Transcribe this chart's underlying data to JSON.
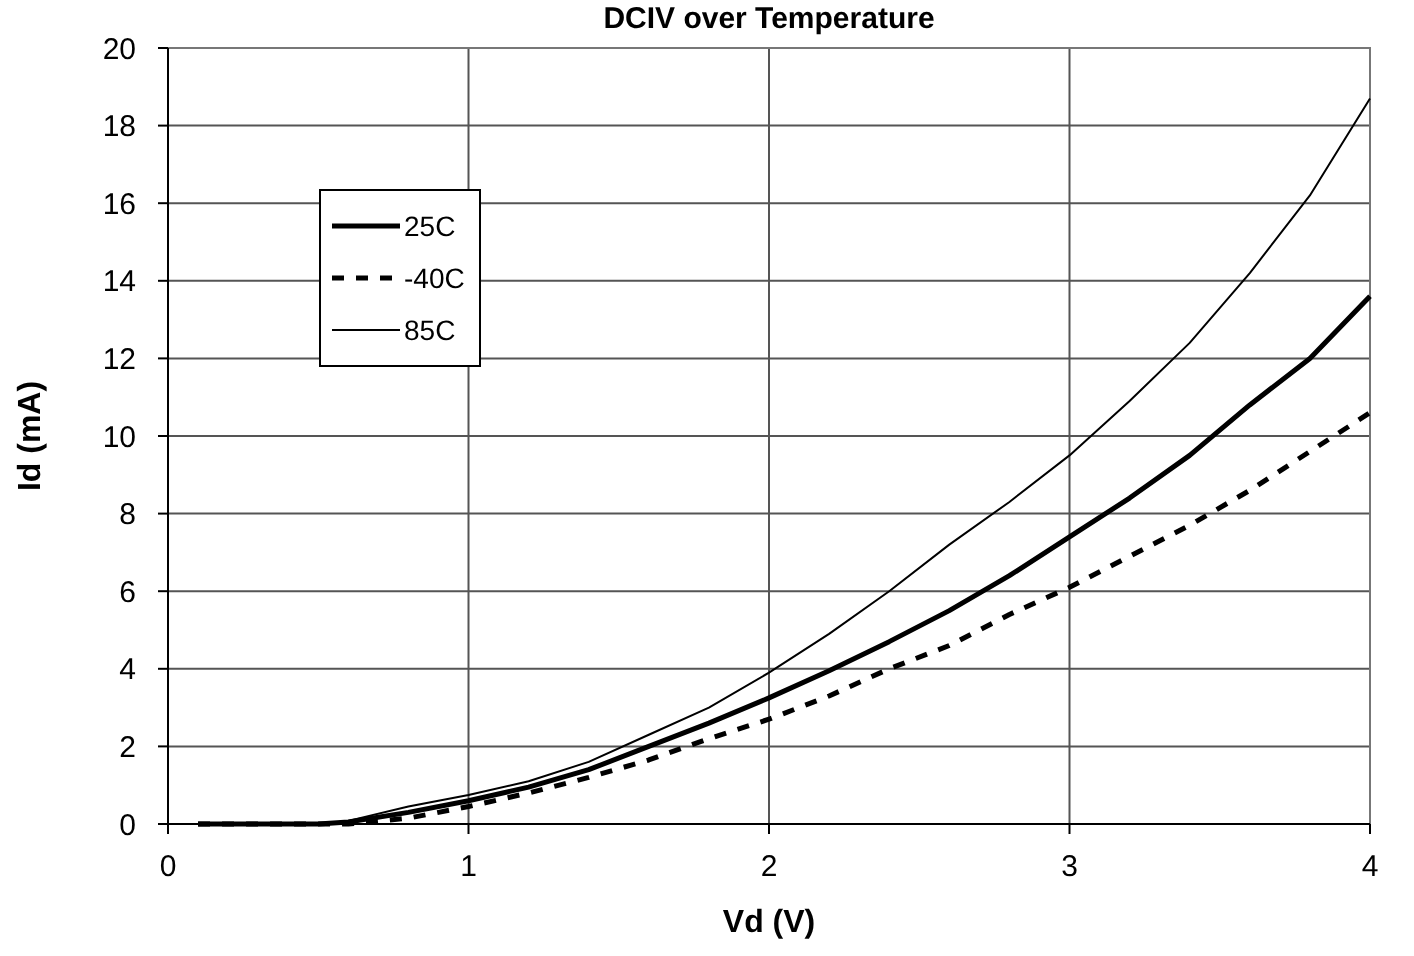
{
  "chart_data": {
    "type": "line",
    "title": "DCIV over Temperature",
    "xlabel": "Vd (V)",
    "ylabel": "Id (mA)",
    "x": [
      0.1,
      0.3,
      0.5,
      0.6,
      0.8,
      1.0,
      1.2,
      1.4,
      1.6,
      1.8,
      2.0,
      2.2,
      2.4,
      2.6,
      2.8,
      3.0,
      3.2,
      3.4,
      3.6,
      3.8,
      4.0
    ],
    "series": [
      {
        "name": "25C",
        "color": "#000000",
        "line_style": "solid",
        "values": [
          0,
          0,
          0,
          0.05,
          0.3,
          0.6,
          0.95,
          1.4,
          2.0,
          2.6,
          3.25,
          3.95,
          4.7,
          5.5,
          6.4,
          7.4,
          8.4,
          9.5,
          10.8,
          12.0,
          13.6
        ]
      },
      {
        "name": "-40C",
        "color": "#000000",
        "line_style": "dashed",
        "values": [
          0,
          0,
          0,
          0,
          0.15,
          0.45,
          0.8,
          1.2,
          1.65,
          2.2,
          2.7,
          3.3,
          4.0,
          4.6,
          5.4,
          6.1,
          6.9,
          7.7,
          8.6,
          9.6,
          10.6
        ]
      },
      {
        "name": "85C",
        "color": "#000000",
        "line_style": "solid",
        "values": [
          0,
          0,
          0,
          0.08,
          0.45,
          0.75,
          1.1,
          1.6,
          2.3,
          3.0,
          3.9,
          4.9,
          6.0,
          7.2,
          8.3,
          9.5,
          10.9,
          12.4,
          14.2,
          16.2,
          18.7
        ]
      }
    ],
    "xlim": [
      0,
      4
    ],
    "xticks": [
      0,
      1,
      2,
      3,
      4
    ],
    "ylim": [
      0,
      20
    ],
    "yticks": [
      0,
      2,
      4,
      6,
      8,
      10,
      12,
      14,
      16,
      18,
      20
    ],
    "grid": true,
    "legend": "top left",
    "marker": "none"
  }
}
